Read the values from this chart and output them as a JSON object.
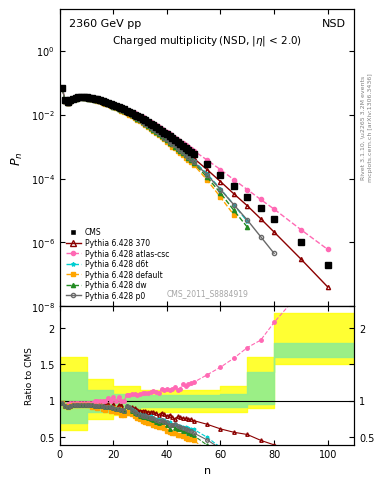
{
  "title_top": "2360 GeV pp",
  "title_right": "NSD",
  "main_title": "Charged multiplicity",
  "main_title_sub": "(NSD, |\\eta| < 2.0)",
  "xlabel": "n",
  "ylabel_main": "P_n",
  "ylabel_ratio": "Ratio to CMS",
  "watermark": "CMS_2011_S8884919",
  "right_label": "Rivet 3.1.10, \\u2265 3.2M events",
  "right_label2": "mcplots.cern.ch [arXiv:1306.3436]",
  "cms_n": [
    1,
    2,
    3,
    4,
    5,
    6,
    7,
    8,
    9,
    10,
    11,
    12,
    13,
    14,
    15,
    16,
    17,
    18,
    19,
    20,
    21,
    22,
    23,
    24,
    25,
    26,
    27,
    28,
    29,
    30,
    31,
    32,
    33,
    34,
    35,
    36,
    37,
    38,
    39,
    40,
    41,
    42,
    43,
    44,
    45,
    46,
    47,
    48,
    49,
    50,
    55,
    60,
    65,
    70,
    75,
    80,
    90,
    100
  ],
  "cms_p": [
    0.07,
    0.028,
    0.025,
    0.028,
    0.032,
    0.034,
    0.036,
    0.037,
    0.036,
    0.035,
    0.034,
    0.033,
    0.031,
    0.03,
    0.028,
    0.027,
    0.025,
    0.023,
    0.022,
    0.02,
    0.019,
    0.017,
    0.016,
    0.015,
    0.013,
    0.012,
    0.011,
    0.01,
    0.0092,
    0.0083,
    0.0074,
    0.0066,
    0.0059,
    0.0052,
    0.0046,
    0.0041,
    0.0036,
    0.0031,
    0.0027,
    0.0024,
    0.0021,
    0.0018,
    0.0016,
    0.0014,
    0.0012,
    0.00105,
    0.00091,
    0.00079,
    0.00068,
    0.00059,
    0.00028,
    0.00013,
    5.8e-05,
    2.6e-05,
    1.2e-05,
    5.3e-06,
    1e-06,
    2e-07
  ],
  "py370_n": [
    1,
    2,
    3,
    4,
    5,
    6,
    7,
    8,
    9,
    10,
    11,
    12,
    13,
    14,
    15,
    16,
    17,
    18,
    19,
    20,
    21,
    22,
    23,
    24,
    25,
    26,
    27,
    28,
    29,
    30,
    31,
    32,
    33,
    34,
    35,
    36,
    37,
    38,
    39,
    40,
    41,
    42,
    43,
    44,
    45,
    46,
    47,
    48,
    49,
    50,
    55,
    60,
    65,
    70,
    75,
    80,
    90,
    100
  ],
  "py370_p": [
    0.068,
    0.026,
    0.024,
    0.027,
    0.031,
    0.033,
    0.035,
    0.036,
    0.035,
    0.034,
    0.033,
    0.032,
    0.03,
    0.028,
    0.027,
    0.025,
    0.024,
    0.022,
    0.02,
    0.019,
    0.017,
    0.016,
    0.015,
    0.013,
    0.012,
    0.011,
    0.01,
    0.009,
    0.0081,
    0.0072,
    0.0064,
    0.0057,
    0.005,
    0.0044,
    0.0039,
    0.0034,
    0.0029,
    0.0026,
    0.0022,
    0.0019,
    0.0017,
    0.0014,
    0.0012,
    0.0011,
    0.00093,
    0.0008,
    0.00069,
    0.00059,
    0.00051,
    0.00043,
    0.00019,
    8e-05,
    3.3e-05,
    1.4e-05,
    5.5e-06,
    2.1e-06,
    3e-07,
    4e-08
  ],
  "pyatlas_n": [
    1,
    2,
    3,
    4,
    5,
    6,
    7,
    8,
    9,
    10,
    11,
    12,
    13,
    14,
    15,
    16,
    17,
    18,
    19,
    20,
    21,
    22,
    23,
    24,
    25,
    26,
    27,
    28,
    29,
    30,
    31,
    32,
    33,
    34,
    35,
    36,
    37,
    38,
    39,
    40,
    41,
    42,
    43,
    44,
    45,
    46,
    47,
    48,
    49,
    50,
    55,
    60,
    65,
    70,
    75,
    80,
    90,
    100
  ],
  "pyatlas_p": [
    0.068,
    0.026,
    0.024,
    0.027,
    0.031,
    0.033,
    0.035,
    0.036,
    0.035,
    0.034,
    0.033,
    0.032,
    0.031,
    0.03,
    0.028,
    0.027,
    0.025,
    0.024,
    0.022,
    0.021,
    0.019,
    0.018,
    0.016,
    0.015,
    0.014,
    0.013,
    0.012,
    0.011,
    0.01,
    0.0091,
    0.0082,
    0.0073,
    0.0065,
    0.0058,
    0.0052,
    0.0046,
    0.004,
    0.0036,
    0.0031,
    0.0028,
    0.0024,
    0.0021,
    0.0019,
    0.0016,
    0.0014,
    0.0013,
    0.0011,
    0.00097,
    0.00085,
    0.00074,
    0.00038,
    0.00019,
    9.2e-05,
    4.5e-05,
    2.2e-05,
    1.1e-05,
    2.5e-06,
    6e-07
  ],
  "pyd6t_n": [
    1,
    2,
    3,
    4,
    5,
    6,
    7,
    8,
    9,
    10,
    11,
    12,
    13,
    14,
    15,
    16,
    17,
    18,
    19,
    20,
    21,
    22,
    23,
    24,
    25,
    26,
    27,
    28,
    29,
    30,
    31,
    32,
    33,
    34,
    35,
    36,
    37,
    38,
    39,
    40,
    41,
    42,
    43,
    44,
    45,
    46,
    47,
    48,
    49,
    50,
    55,
    60,
    65,
    70
  ],
  "pyd6t_p": [
    0.068,
    0.026,
    0.023,
    0.026,
    0.03,
    0.032,
    0.034,
    0.035,
    0.034,
    0.033,
    0.032,
    0.031,
    0.029,
    0.028,
    0.026,
    0.025,
    0.023,
    0.021,
    0.02,
    0.018,
    0.017,
    0.015,
    0.014,
    0.013,
    0.012,
    0.011,
    0.0097,
    0.0086,
    0.0077,
    0.0068,
    0.006,
    0.0053,
    0.0046,
    0.0041,
    0.0035,
    0.0031,
    0.0027,
    0.0023,
    0.002,
    0.0017,
    0.0015,
    0.0012,
    0.0011,
    0.00092,
    0.00079,
    0.00068,
    0.00058,
    0.0005,
    0.00042,
    0.00036,
    0.00014,
    4.7e-05,
    1.5e-05,
    4.5e-06
  ],
  "pydefault_n": [
    1,
    2,
    3,
    4,
    5,
    6,
    7,
    8,
    9,
    10,
    11,
    12,
    13,
    14,
    15,
    16,
    17,
    18,
    19,
    20,
    21,
    22,
    23,
    24,
    25,
    26,
    27,
    28,
    29,
    30,
    31,
    32,
    33,
    34,
    35,
    36,
    37,
    38,
    39,
    40,
    41,
    42,
    43,
    44,
    45,
    46,
    47,
    48,
    49,
    50,
    55,
    60,
    65
  ],
  "pydefault_p": [
    0.068,
    0.026,
    0.023,
    0.026,
    0.03,
    0.032,
    0.034,
    0.035,
    0.034,
    0.033,
    0.032,
    0.03,
    0.029,
    0.027,
    0.026,
    0.024,
    0.022,
    0.021,
    0.019,
    0.018,
    0.016,
    0.015,
    0.013,
    0.012,
    0.011,
    0.01,
    0.009,
    0.0079,
    0.007,
    0.0062,
    0.0054,
    0.0047,
    0.0041,
    0.0036,
    0.0031,
    0.0027,
    0.0023,
    0.002,
    0.0017,
    0.0014,
    0.0012,
    0.001,
    0.00089,
    0.00075,
    0.00064,
    0.00054,
    0.00045,
    0.00038,
    0.00032,
    0.00027,
    9e-05,
    2.6e-05,
    7.2e-06
  ],
  "pydw_n": [
    1,
    2,
    3,
    4,
    5,
    6,
    7,
    8,
    9,
    10,
    11,
    12,
    13,
    14,
    15,
    16,
    17,
    18,
    19,
    20,
    21,
    22,
    23,
    24,
    25,
    26,
    27,
    28,
    29,
    30,
    31,
    32,
    33,
    34,
    35,
    36,
    37,
    38,
    39,
    40,
    41,
    42,
    43,
    44,
    45,
    46,
    47,
    48,
    49,
    50,
    55,
    60,
    65,
    70
  ],
  "pydw_p": [
    0.068,
    0.026,
    0.023,
    0.026,
    0.03,
    0.032,
    0.034,
    0.035,
    0.034,
    0.033,
    0.032,
    0.031,
    0.029,
    0.028,
    0.026,
    0.025,
    0.023,
    0.021,
    0.02,
    0.018,
    0.017,
    0.015,
    0.014,
    0.013,
    0.012,
    0.011,
    0.0095,
    0.0084,
    0.0075,
    0.0066,
    0.0058,
    0.0051,
    0.0045,
    0.0039,
    0.0034,
    0.0029,
    0.0025,
    0.0022,
    0.0019,
    0.0016,
    0.0013,
    0.0012,
    0.001,
    0.00086,
    0.00073,
    0.00062,
    0.00053,
    0.00044,
    0.00037,
    0.00031,
    0.00011,
    3.5e-05,
    1e-05,
    3e-06
  ],
  "pyp0_n": [
    1,
    2,
    3,
    4,
    5,
    6,
    7,
    8,
    9,
    10,
    11,
    12,
    13,
    14,
    15,
    16,
    17,
    18,
    19,
    20,
    21,
    22,
    23,
    24,
    25,
    26,
    27,
    28,
    29,
    30,
    31,
    32,
    33,
    34,
    35,
    36,
    37,
    38,
    39,
    40,
    41,
    42,
    43,
    44,
    45,
    46,
    47,
    48,
    49,
    50,
    55,
    60,
    65,
    70,
    75,
    80
  ],
  "pyp0_p": [
    0.068,
    0.026,
    0.023,
    0.026,
    0.03,
    0.032,
    0.034,
    0.035,
    0.034,
    0.033,
    0.032,
    0.031,
    0.029,
    0.028,
    0.026,
    0.025,
    0.023,
    0.021,
    0.02,
    0.018,
    0.017,
    0.015,
    0.014,
    0.013,
    0.012,
    0.011,
    0.0096,
    0.0085,
    0.0076,
    0.0067,
    0.0059,
    0.0052,
    0.0046,
    0.004,
    0.0035,
    0.003,
    0.0026,
    0.0023,
    0.0019,
    0.0017,
    0.0014,
    0.0012,
    0.0011,
    0.00091,
    0.00077,
    0.00066,
    0.00056,
    0.00047,
    0.0004,
    0.00033,
    0.00013,
    4.5e-05,
    1.5e-05,
    5e-06,
    1.5e-06,
    4.5e-07
  ],
  "band_yellow_x": [
    0,
    10,
    20,
    30,
    40,
    50,
    60,
    70,
    80,
    90,
    100,
    110
  ],
  "band_yellow_lo": [
    0.6,
    0.75,
    0.8,
    0.85,
    0.85,
    0.85,
    0.85,
    0.9,
    1.5,
    1.5,
    1.5,
    1.5
  ],
  "band_yellow_hi": [
    1.6,
    1.3,
    1.2,
    1.15,
    1.15,
    1.15,
    1.2,
    1.6,
    2.2,
    2.2,
    2.2,
    2.2
  ],
  "band_green_x": [
    0,
    10,
    20,
    30,
    40,
    50,
    60,
    70,
    80,
    90,
    100,
    110
  ],
  "band_green_lo": [
    0.7,
    0.85,
    0.9,
    0.92,
    0.92,
    0.92,
    0.92,
    0.95,
    1.6,
    1.6,
    1.6,
    1.6
  ],
  "band_green_hi": [
    1.4,
    1.15,
    1.1,
    1.08,
    1.08,
    1.08,
    1.1,
    1.4,
    1.8,
    1.8,
    1.8,
    1.8
  ],
  "color_cms": "#000000",
  "color_py370": "#8b0000",
  "color_pyatlas": "#ff69b4",
  "color_pyd6t": "#00ced1",
  "color_pydefault": "#ffa500",
  "color_pydw": "#228b22",
  "color_pyp0": "#696969",
  "ylim_main": [
    1e-08,
    20
  ],
  "ylim_ratio": [
    0.4,
    2.3
  ],
  "xlim": [
    0,
    110
  ]
}
